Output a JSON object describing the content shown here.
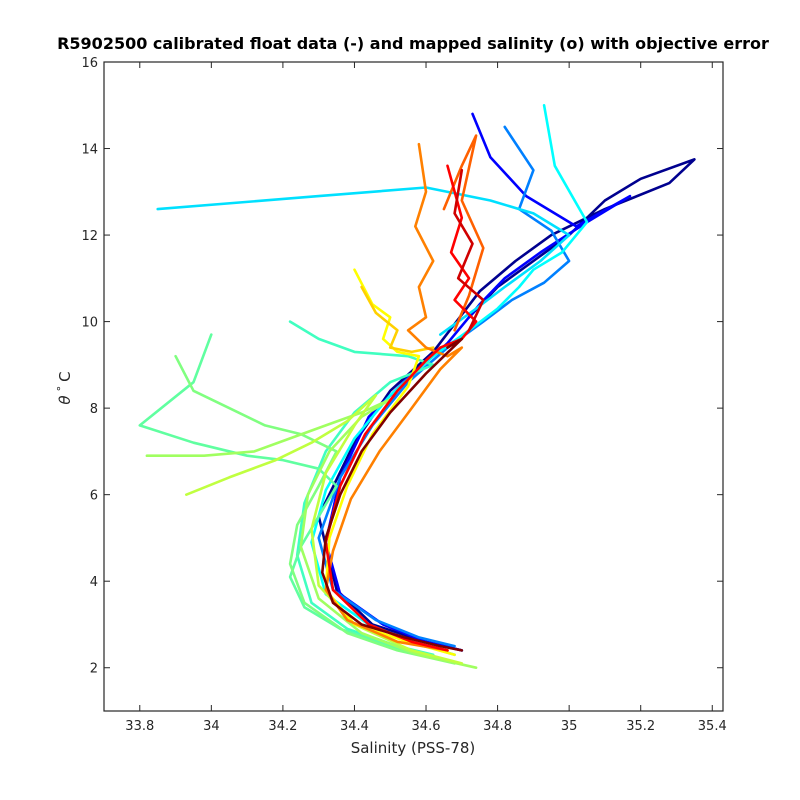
{
  "chart_data": {
    "type": "line",
    "title": "R5902500 calibrated float data (-) and mapped salinity (o) with objective error",
    "xlabel": "Salinity (PSS-78)",
    "ylabel_theta": "θ",
    "ylabel_degree": "°",
    "ylabel_unit": "C",
    "xlim": [
      33.7,
      35.43
    ],
    "ylim": [
      1,
      16
    ],
    "xticks": [
      "33.8",
      "34",
      "34.2",
      "34.4",
      "34.6",
      "34.8",
      "35",
      "35.2",
      "35.4"
    ],
    "xtick_values": [
      33.8,
      34.0,
      34.2,
      34.4,
      34.6,
      34.8,
      35.0,
      35.2,
      35.4
    ],
    "yticks": [
      "2",
      "4",
      "6",
      "8",
      "10",
      "12",
      "14",
      "16"
    ],
    "ytick_values": [
      2,
      4,
      6,
      8,
      10,
      12,
      14,
      16
    ],
    "grid": false,
    "colormap": "jet",
    "colors": {
      "axis": "#262626",
      "jet_stops": [
        "#00008f",
        "#0000ff",
        "#0080ff",
        "#00ffff",
        "#80ff80",
        "#ffff00",
        "#ff8000",
        "#ff0000",
        "#800000"
      ]
    },
    "series": [
      {
        "color": "#00008f",
        "x": [
          34.72,
          34.8,
          34.9,
          35.0,
          35.1,
          35.2,
          35.35,
          35.28,
          35.1,
          34.95,
          34.85,
          34.75,
          34.62,
          34.5,
          34.4,
          34.3,
          34.35,
          34.45,
          34.6,
          34.7
        ],
        "y": [
          10.1,
          10.8,
          11.4,
          12.0,
          12.8,
          13.3,
          13.75,
          13.2,
          12.6,
          12.0,
          11.4,
          10.7,
          9.3,
          8.4,
          7.2,
          5.5,
          3.8,
          3.0,
          2.6,
          2.4
        ]
      },
      {
        "color": "#0000ff",
        "x": [
          34.73,
          34.78,
          34.88,
          35.02,
          35.17,
          35.05,
          34.92,
          34.82,
          34.75,
          34.66,
          34.55,
          34.44,
          34.36,
          34.32,
          34.36,
          34.48,
          34.6,
          34.7
        ],
        "y": [
          14.8,
          13.8,
          12.9,
          12.2,
          12.9,
          12.3,
          11.6,
          11.0,
          10.4,
          9.5,
          8.7,
          7.8,
          6.4,
          4.9,
          3.7,
          3.0,
          2.6,
          2.4
        ]
      },
      {
        "color": "#0080ff",
        "x": [
          34.82,
          34.9,
          34.86,
          34.95,
          35.0,
          34.93,
          34.84,
          34.76,
          34.66,
          34.55,
          34.45,
          34.36,
          34.3,
          34.34,
          34.46,
          34.58,
          34.68
        ],
        "y": [
          14.5,
          13.5,
          12.6,
          12.1,
          11.4,
          10.9,
          10.5,
          10.0,
          9.4,
          8.6,
          7.6,
          6.4,
          5.0,
          3.8,
          3.1,
          2.7,
          2.5
        ]
      },
      {
        "color": "#00ffff",
        "x": [
          34.93,
          34.96,
          35.05,
          34.98,
          34.9,
          34.86,
          34.8,
          34.72,
          34.62,
          34.5,
          34.4,
          34.32,
          34.28,
          34.32,
          34.44,
          34.56,
          34.68
        ],
        "y": [
          15.0,
          13.6,
          12.3,
          11.6,
          11.2,
          10.8,
          10.3,
          9.8,
          9.2,
          8.3,
          7.3,
          6.1,
          4.9,
          3.7,
          3.0,
          2.6,
          2.3
        ]
      },
      {
        "color": "#00e0ff",
        "x": [
          33.85,
          34.3,
          34.6,
          34.78,
          34.9,
          35.0,
          34.92,
          34.82,
          34.74,
          34.64
        ],
        "y": [
          12.6,
          12.9,
          13.1,
          12.8,
          12.5,
          12.0,
          11.4,
          10.8,
          10.3,
          9.7
        ]
      },
      {
        "color": "#40ffc0",
        "x": [
          34.22,
          34.3,
          34.4,
          34.55,
          34.62,
          34.5,
          34.4,
          34.32,
          34.26,
          34.24,
          34.28,
          34.38,
          34.52,
          34.62
        ],
        "y": [
          10.0,
          9.6,
          9.3,
          9.2,
          9.0,
          8.6,
          7.9,
          7.0,
          5.8,
          4.6,
          3.5,
          2.9,
          2.5,
          2.3
        ]
      },
      {
        "color": "#60ffa0",
        "x": [
          34.0,
          33.95,
          33.8,
          33.95,
          34.1,
          34.2,
          34.3,
          34.35,
          34.3,
          34.25,
          34.22,
          34.26,
          34.36,
          34.5,
          34.64
        ],
        "y": [
          9.7,
          8.6,
          7.6,
          7.2,
          6.9,
          6.8,
          6.6,
          6.2,
          5.5,
          4.8,
          4.1,
          3.4,
          2.9,
          2.5,
          2.2
        ]
      },
      {
        "color": "#80ff80",
        "x": [
          33.9,
          33.95,
          34.05,
          34.15,
          34.25,
          34.35,
          34.3,
          34.24,
          34.22,
          34.26,
          34.38,
          34.52,
          34.68
        ],
        "y": [
          9.2,
          8.4,
          8.0,
          7.6,
          7.4,
          7.0,
          6.2,
          5.3,
          4.4,
          3.5,
          2.8,
          2.4,
          2.1
        ]
      },
      {
        "color": "#a0ff60",
        "x": [
          33.82,
          33.98,
          34.12,
          34.22,
          34.32,
          34.42,
          34.5,
          34.42,
          34.33,
          34.27,
          34.25,
          34.3,
          34.42,
          34.58,
          34.74
        ],
        "y": [
          6.9,
          6.9,
          7.0,
          7.3,
          7.6,
          7.9,
          8.2,
          7.8,
          7.0,
          6.0,
          4.8,
          3.6,
          2.8,
          2.3,
          2.0
        ]
      },
      {
        "color": "#c0ff40",
        "x": [
          33.93,
          34.05,
          34.18,
          34.28,
          34.38,
          34.46,
          34.4,
          34.32,
          34.28,
          34.3,
          34.4,
          34.56,
          34.7
        ],
        "y": [
          6.0,
          6.4,
          6.8,
          7.2,
          7.7,
          8.3,
          7.6,
          6.5,
          5.2,
          3.9,
          3.0,
          2.4,
          2.1
        ]
      },
      {
        "color": "#ffff00",
        "x": [
          34.4,
          34.45,
          34.5,
          34.48,
          34.52,
          34.58,
          34.55,
          34.45,
          34.38,
          34.33,
          34.32,
          34.4,
          34.55,
          34.68
        ],
        "y": [
          11.2,
          10.4,
          10.1,
          9.6,
          9.3,
          9.2,
          8.5,
          7.4,
          6.2,
          5.0,
          3.8,
          3.0,
          2.6,
          2.3
        ]
      },
      {
        "color": "#ffd000",
        "x": [
          34.42,
          34.46,
          34.52,
          34.5,
          34.56,
          34.62
        ],
        "y": [
          10.8,
          10.2,
          9.8,
          9.4,
          9.3,
          9.4
        ]
      },
      {
        "color": "#ff8000",
        "x": [
          34.58,
          34.6,
          34.57,
          34.62,
          34.58,
          34.6,
          34.55,
          34.6,
          34.66,
          34.7,
          34.64,
          34.56,
          34.47,
          34.39,
          34.34,
          34.32,
          34.38,
          34.52,
          34.66
        ],
        "y": [
          14.1,
          13.0,
          12.2,
          11.4,
          10.8,
          10.1,
          9.8,
          9.4,
          9.2,
          9.4,
          8.9,
          8.0,
          7.0,
          5.9,
          4.7,
          3.8,
          3.1,
          2.6,
          2.4
        ]
      },
      {
        "color": "#ff6000",
        "x": [
          34.65,
          34.7,
          34.74,
          34.7,
          34.76,
          34.72,
          34.68
        ],
        "y": [
          12.6,
          13.6,
          14.3,
          12.8,
          11.7,
          10.6,
          9.8
        ]
      },
      {
        "color": "#ff0000",
        "x": [
          34.66,
          34.7,
          34.67,
          34.72,
          34.68,
          34.74,
          34.7,
          34.64,
          34.6,
          34.52,
          34.43,
          34.36,
          34.32,
          34.34,
          34.44,
          34.56,
          34.66
        ],
        "y": [
          13.6,
          12.4,
          11.6,
          11.0,
          10.5,
          10.0,
          9.6,
          9.4,
          9.1,
          8.4,
          7.4,
          6.2,
          4.9,
          3.8,
          3.0,
          2.6,
          2.4
        ]
      },
      {
        "color": "#d00000",
        "x": [
          34.7,
          34.68,
          34.73,
          34.69,
          34.76,
          34.72
        ],
        "y": [
          13.5,
          12.5,
          11.8,
          11.0,
          10.5,
          9.8
        ]
      },
      {
        "color": "#800000",
        "x": [
          34.66,
          34.7,
          34.6,
          34.5,
          34.42,
          34.36,
          34.32,
          34.31,
          34.34,
          34.42,
          34.54,
          34.64,
          34.7
        ],
        "y": [
          9.4,
          9.6,
          8.8,
          7.9,
          7.0,
          6.0,
          5.0,
          4.2,
          3.5,
          3.0,
          2.7,
          2.5,
          2.4
        ]
      }
    ]
  }
}
